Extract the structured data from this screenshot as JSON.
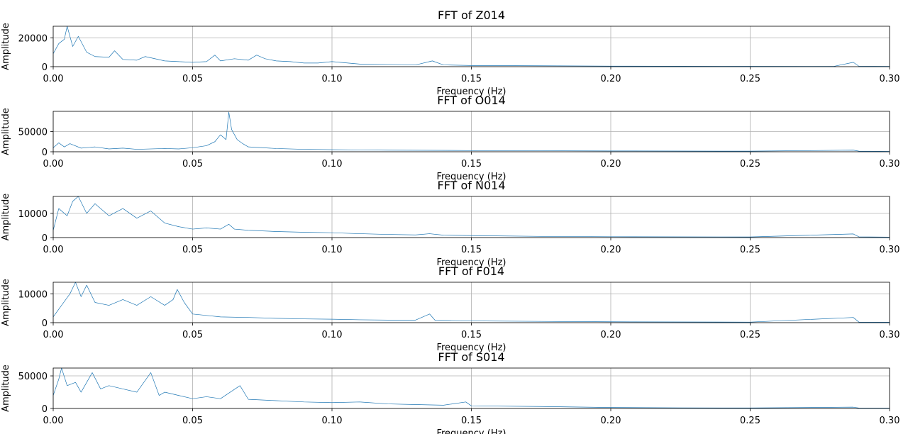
{
  "chart_data": [
    {
      "type": "line",
      "title": "FFT of Z014",
      "xlabel": "Frequency (Hz)",
      "ylabel": "Amplitude",
      "xlim": [
        0.0,
        0.3
      ],
      "ylim": [
        0,
        28000
      ],
      "xticks": [
        {
          "value": 0.0,
          "label": "0.00"
        },
        {
          "value": 0.05,
          "label": "0.05"
        },
        {
          "value": 0.1,
          "label": "0.10"
        },
        {
          "value": 0.15,
          "label": "0.15"
        },
        {
          "value": 0.2,
          "label": "0.20"
        },
        {
          "value": 0.25,
          "label": "0.25"
        },
        {
          "value": 0.3,
          "label": "0.30"
        }
      ],
      "yticks": [
        {
          "value": 0,
          "label": "0"
        },
        {
          "value": 20000,
          "label": "20000"
        }
      ],
      "grid": true,
      "series": [
        {
          "color": "#1f77b4",
          "points": [
            [
              0.0,
              9000
            ],
            [
              0.002,
              16000
            ],
            [
              0.004,
              19000
            ],
            [
              0.005,
              28000
            ],
            [
              0.007,
              14000
            ],
            [
              0.009,
              21000
            ],
            [
              0.012,
              10000
            ],
            [
              0.015,
              7000
            ],
            [
              0.02,
              6500
            ],
            [
              0.022,
              11000
            ],
            [
              0.025,
              5000
            ],
            [
              0.03,
              4500
            ],
            [
              0.033,
              7000
            ],
            [
              0.04,
              4000
            ],
            [
              0.045,
              3500
            ],
            [
              0.05,
              3000
            ],
            [
              0.055,
              3500
            ],
            [
              0.058,
              8000
            ],
            [
              0.06,
              4000
            ],
            [
              0.065,
              5500
            ],
            [
              0.07,
              4500
            ],
            [
              0.073,
              8000
            ],
            [
              0.076,
              5500
            ],
            [
              0.08,
              4000
            ],
            [
              0.085,
              3500
            ],
            [
              0.09,
              2500
            ],
            [
              0.095,
              2500
            ],
            [
              0.1,
              3500
            ],
            [
              0.11,
              1800
            ],
            [
              0.12,
              1500
            ],
            [
              0.13,
              1200
            ],
            [
              0.136,
              4000
            ],
            [
              0.14,
              1200
            ],
            [
              0.15,
              800
            ],
            [
              0.175,
              600
            ],
            [
              0.2,
              400
            ],
            [
              0.225,
              300
            ],
            [
              0.25,
              250
            ],
            [
              0.28,
              200
            ],
            [
              0.287,
              3000
            ],
            [
              0.289,
              300
            ],
            [
              0.3,
              200
            ]
          ]
        }
      ]
    },
    {
      "type": "line",
      "title": "FFT of O014",
      "xlabel": "Frequency (Hz)",
      "ylabel": "Amplitude",
      "xlim": [
        0.0,
        0.3
      ],
      "ylim": [
        0,
        100000
      ],
      "xticks": [
        {
          "value": 0.0,
          "label": "0.00"
        },
        {
          "value": 0.05,
          "label": "0.05"
        },
        {
          "value": 0.1,
          "label": "0.10"
        },
        {
          "value": 0.15,
          "label": "0.15"
        },
        {
          "value": 0.2,
          "label": "0.20"
        },
        {
          "value": 0.25,
          "label": "0.25"
        },
        {
          "value": 0.3,
          "label": "0.30"
        }
      ],
      "yticks": [
        {
          "value": 0,
          "label": "0"
        },
        {
          "value": 50000,
          "label": "50000"
        }
      ],
      "grid": true,
      "series": [
        {
          "color": "#1f77b4",
          "points": [
            [
              0.0,
              10000
            ],
            [
              0.002,
              22000
            ],
            [
              0.004,
              12000
            ],
            [
              0.006,
              20000
            ],
            [
              0.01,
              9000
            ],
            [
              0.015,
              12000
            ],
            [
              0.02,
              7000
            ],
            [
              0.025,
              9000
            ],
            [
              0.03,
              6000
            ],
            [
              0.04,
              8000
            ],
            [
              0.045,
              7000
            ],
            [
              0.05,
              10000
            ],
            [
              0.055,
              15000
            ],
            [
              0.058,
              25000
            ],
            [
              0.06,
              42000
            ],
            [
              0.062,
              30000
            ],
            [
              0.063,
              98000
            ],
            [
              0.064,
              55000
            ],
            [
              0.066,
              30000
            ],
            [
              0.068,
              20000
            ],
            [
              0.07,
              12000
            ],
            [
              0.08,
              8000
            ],
            [
              0.09,
              6000
            ],
            [
              0.1,
              5000
            ],
            [
              0.12,
              4000
            ],
            [
              0.15,
              3000
            ],
            [
              0.2,
              2000
            ],
            [
              0.25,
              1500
            ],
            [
              0.287,
              4000
            ],
            [
              0.289,
              1500
            ],
            [
              0.3,
              1000
            ]
          ]
        }
      ]
    },
    {
      "type": "line",
      "title": "FFT of N014",
      "xlabel": "Frequency (Hz)",
      "ylabel": "Amplitude",
      "xlim": [
        0.0,
        0.3
      ],
      "ylim": [
        0,
        17000
      ],
      "xticks": [
        {
          "value": 0.0,
          "label": "0.00"
        },
        {
          "value": 0.05,
          "label": "0.05"
        },
        {
          "value": 0.1,
          "label": "0.10"
        },
        {
          "value": 0.15,
          "label": "0.15"
        },
        {
          "value": 0.2,
          "label": "0.20"
        },
        {
          "value": 0.25,
          "label": "0.25"
        },
        {
          "value": 0.3,
          "label": "0.30"
        }
      ],
      "yticks": [
        {
          "value": 0,
          "label": "0"
        },
        {
          "value": 10000,
          "label": "10000"
        }
      ],
      "grid": true,
      "series": [
        {
          "color": "#1f77b4",
          "points": [
            [
              0.0,
              3000
            ],
            [
              0.002,
              12000
            ],
            [
              0.005,
              9000
            ],
            [
              0.007,
              15000
            ],
            [
              0.009,
              17000
            ],
            [
              0.012,
              10000
            ],
            [
              0.015,
              14000
            ],
            [
              0.02,
              9000
            ],
            [
              0.025,
              12000
            ],
            [
              0.03,
              8000
            ],
            [
              0.035,
              11000
            ],
            [
              0.04,
              6000
            ],
            [
              0.045,
              4500
            ],
            [
              0.05,
              3500
            ],
            [
              0.055,
              4000
            ],
            [
              0.06,
              3500
            ],
            [
              0.063,
              5500
            ],
            [
              0.065,
              3500
            ],
            [
              0.07,
              3000
            ],
            [
              0.08,
              2500
            ],
            [
              0.09,
              2200
            ],
            [
              0.1,
              2000
            ],
            [
              0.11,
              1600
            ],
            [
              0.12,
              1300
            ],
            [
              0.13,
              1100
            ],
            [
              0.135,
              1600
            ],
            [
              0.14,
              1000
            ],
            [
              0.15,
              800
            ],
            [
              0.175,
              500
            ],
            [
              0.2,
              350
            ],
            [
              0.25,
              250
            ],
            [
              0.287,
              1500
            ],
            [
              0.289,
              300
            ],
            [
              0.3,
              200
            ]
          ]
        }
      ]
    },
    {
      "type": "line",
      "title": "FFT of F014",
      "xlabel": "Frequency (Hz)",
      "ylabel": "Amplitude",
      "xlim": [
        0.0,
        0.3
      ],
      "ylim": [
        0,
        14000
      ],
      "xticks": [
        {
          "value": 0.0,
          "label": "0.00"
        },
        {
          "value": 0.05,
          "label": "0.05"
        },
        {
          "value": 0.1,
          "label": "0.10"
        },
        {
          "value": 0.15,
          "label": "0.15"
        },
        {
          "value": 0.2,
          "label": "0.20"
        },
        {
          "value": 0.25,
          "label": "0.25"
        },
        {
          "value": 0.3,
          "label": "0.30"
        }
      ],
      "yticks": [
        {
          "value": 0,
          "label": "0"
        },
        {
          "value": 10000,
          "label": "10000"
        }
      ],
      "grid": true,
      "series": [
        {
          "color": "#1f77b4",
          "points": [
            [
              0.0,
              2000
            ],
            [
              0.003,
              6000
            ],
            [
              0.006,
              10000
            ],
            [
              0.008,
              14000
            ],
            [
              0.01,
              9000
            ],
            [
              0.012,
              13000
            ],
            [
              0.015,
              7000
            ],
            [
              0.02,
              6000
            ],
            [
              0.025,
              8000
            ],
            [
              0.03,
              6000
            ],
            [
              0.035,
              9000
            ],
            [
              0.04,
              6000
            ],
            [
              0.043,
              8000
            ],
            [
              0.0445,
              11500
            ],
            [
              0.047,
              7000
            ],
            [
              0.05,
              3000
            ],
            [
              0.055,
              2500
            ],
            [
              0.06,
              2000
            ],
            [
              0.07,
              1800
            ],
            [
              0.08,
              1500
            ],
            [
              0.09,
              1300
            ],
            [
              0.1,
              1200
            ],
            [
              0.11,
              1000
            ],
            [
              0.12,
              900
            ],
            [
              0.13,
              900
            ],
            [
              0.135,
              3000
            ],
            [
              0.137,
              800
            ],
            [
              0.15,
              600
            ],
            [
              0.2,
              300
            ],
            [
              0.25,
              200
            ],
            [
              0.287,
              1800
            ],
            [
              0.289,
              200
            ],
            [
              0.3,
              150
            ]
          ]
        }
      ]
    },
    {
      "type": "line",
      "title": "FFT of S014",
      "xlabel": "Frequency (Hz)",
      "ylabel": "Amplitude",
      "xlim": [
        0.0,
        0.3
      ],
      "ylim": [
        0,
        62000
      ],
      "xticks": [
        {
          "value": 0.0,
          "label": "0.00"
        },
        {
          "value": 0.05,
          "label": "0.05"
        },
        {
          "value": 0.1,
          "label": "0.10"
        },
        {
          "value": 0.15,
          "label": "0.15"
        },
        {
          "value": 0.2,
          "label": "0.20"
        },
        {
          "value": 0.25,
          "label": "0.25"
        },
        {
          "value": 0.3,
          "label": "0.30"
        }
      ],
      "yticks": [
        {
          "value": 0,
          "label": "0"
        },
        {
          "value": 50000,
          "label": "50000"
        }
      ],
      "grid": true,
      "series": [
        {
          "color": "#1f77b4",
          "points": [
            [
              0.0,
              20000
            ],
            [
              0.002,
              45000
            ],
            [
              0.003,
              62000
            ],
            [
              0.005,
              35000
            ],
            [
              0.008,
              40000
            ],
            [
              0.01,
              25000
            ],
            [
              0.014,
              55000
            ],
            [
              0.017,
              30000
            ],
            [
              0.02,
              35000
            ],
            [
              0.025,
              30000
            ],
            [
              0.03,
              25000
            ],
            [
              0.035,
              55000
            ],
            [
              0.038,
              20000
            ],
            [
              0.04,
              25000
            ],
            [
              0.045,
              20000
            ],
            [
              0.05,
              15000
            ],
            [
              0.055,
              18000
            ],
            [
              0.06,
              15000
            ],
            [
              0.067,
              35000
            ],
            [
              0.07,
              14000
            ],
            [
              0.08,
              12000
            ],
            [
              0.09,
              10000
            ],
            [
              0.1,
              9000
            ],
            [
              0.11,
              10000
            ],
            [
              0.12,
              7000
            ],
            [
              0.13,
              6000
            ],
            [
              0.14,
              5000
            ],
            [
              0.148,
              10000
            ],
            [
              0.15,
              4000
            ],
            [
              0.175,
              3000
            ],
            [
              0.2,
              1500
            ],
            [
              0.225,
              1000
            ],
            [
              0.25,
              800
            ],
            [
              0.287,
              2000
            ],
            [
              0.289,
              700
            ],
            [
              0.3,
              600
            ]
          ]
        }
      ]
    }
  ]
}
